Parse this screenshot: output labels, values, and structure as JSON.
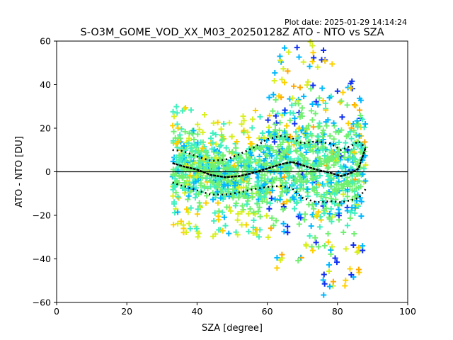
{
  "chart_data": {
    "type": "scatter",
    "plot_date": "Plot date: 2025-01-29 14:14:24",
    "title": "S-O3M_GOME_VOD_XX_M03_20250128Z ATO - NTO vs SZA",
    "xlabel": "SZA [degree]",
    "ylabel": "ATO - NTO [DU]",
    "xlim": [
      0,
      100
    ],
    "ylim": [
      -60,
      60
    ],
    "xticks": [
      "0",
      "20",
      "40",
      "60",
      "80",
      "100"
    ],
    "yticks": [
      "−60",
      "−40",
      "−20",
      "0",
      "20",
      "40",
      "60"
    ],
    "zero_line": 0,
    "grid": false,
    "point_colors": [
      "#1030f0",
      "#00b8ff",
      "#40f0c0",
      "#70f070",
      "#d8f020",
      "#ffd000",
      "#ffa800"
    ],
    "mean_line": {
      "x": [
        33,
        36,
        40,
        44,
        48,
        52,
        56,
        60,
        64,
        67,
        70,
        74,
        78,
        81,
        84,
        86,
        88
      ],
      "y": [
        4,
        2.5,
        1,
        -1.5,
        -2.5,
        -2,
        -0.5,
        1.5,
        3.5,
        4.5,
        3,
        1,
        -0.5,
        -2,
        -0.5,
        1.5,
        11
      ]
    },
    "upper_std": {
      "x": [
        33,
        36,
        40,
        44,
        48,
        52,
        56,
        60,
        64,
        67,
        70,
        74,
        78,
        81,
        84,
        86,
        88
      ],
      "y": [
        10,
        9.5,
        7,
        5,
        5.5,
        8,
        11,
        15,
        16.5,
        15.5,
        13,
        14,
        13,
        10,
        12,
        14,
        11
      ]
    },
    "lower_std": {
      "x": [
        33,
        36,
        40,
        44,
        48,
        52,
        56,
        60,
        64,
        67,
        70,
        74,
        78,
        81,
        84,
        86,
        88
      ],
      "y": [
        -5,
        -6.5,
        -8.5,
        -10.5,
        -10.5,
        -9.5,
        -8,
        -7,
        -6.5,
        -7.5,
        -12,
        -14,
        -13.5,
        -14,
        -13,
        -12,
        -8
      ]
    },
    "scatter_envelope": {
      "x": [
        33,
        36,
        40,
        44,
        48,
        52,
        55,
        58,
        61,
        63,
        65,
        68,
        71,
        74,
        77,
        80,
        83,
        86,
        88
      ],
      "upper": [
        30,
        30,
        28,
        25,
        23,
        24,
        28,
        35,
        48,
        58,
        60,
        58,
        60,
        60,
        55,
        45,
        40,
        45,
        30
      ],
      "lower": [
        -25,
        -28,
        -30,
        -30,
        -28,
        -30,
        -30,
        -30,
        -40,
        -45,
        -40,
        -38,
        -45,
        -55,
        -58,
        -50,
        -55,
        -48,
        -35
      ]
    }
  }
}
